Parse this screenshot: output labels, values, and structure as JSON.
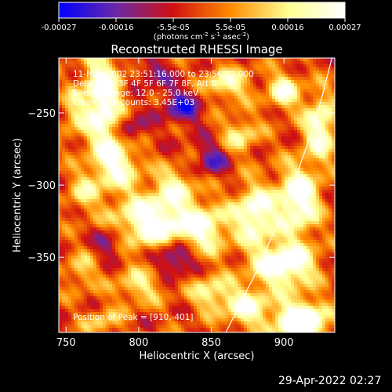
{
  "timestamp": "29-Apr-2022 02:27",
  "colorbar": {
    "colors": [
      "#0000ff",
      "#6a28a8",
      "#d01010",
      "#ff8c00",
      "#ffff90",
      "#ffffff"
    ],
    "ticks": [
      "-0.00027",
      "-0.00016",
      "-5.5e-05",
      "5.5e-05",
      "0.00016",
      "0.00027"
    ],
    "unit_parts": [
      {
        "t": "(photons cm",
        "sup": false
      },
      {
        "t": "-2",
        "sup": true
      },
      {
        "t": " s",
        "sup": false
      },
      {
        "t": "-1",
        "sup": true
      },
      {
        "t": " asec",
        "sup": false
      },
      {
        "t": "-2",
        "sup": true
      },
      {
        "t": ")",
        "sup": false
      }
    ]
  },
  "chart_data": {
    "type": "heatmap",
    "title": "Reconstructed RHESSI Image",
    "xlabel": "Heliocentric X (arcsec)",
    "ylabel": "Heliocentric Y (arcsec)",
    "xlim": [
      745,
      935
    ],
    "ylim": [
      -402,
      -212
    ],
    "x_ticks": [
      750,
      800,
      850,
      900
    ],
    "y_ticks": [
      -250,
      -300,
      -350
    ],
    "x_tick_labels": [
      "750",
      "800",
      "850",
      "900"
    ],
    "y_tick_labels": [
      "−250",
      "−300",
      "−350"
    ],
    "value_range": [
      -0.00027,
      0.00027
    ],
    "grid": false,
    "annotations": [
      "11-May-2002 23:51:16.000 to 23:56:12.000",
      "Detectors: 3F 4F 5F 6F 7F 8F, Att 0",
      "Energy Range: 12.0 - 25.0 keV",
      "Clean     Total counts: 3.45E+03"
    ],
    "peak_label": "Position of Peak = [910,-401]",
    "peak_position": [
      910,
      -401
    ],
    "limb_curve": [
      [
        860,
        -402
      ],
      [
        880,
        -362
      ],
      [
        900,
        -317
      ],
      [
        915,
        -275
      ],
      [
        926,
        -240
      ],
      [
        933,
        -212
      ]
    ],
    "features": [
      {
        "x": 775,
        "y": -240,
        "a": 2.2,
        "sx": 9,
        "sy": 24
      },
      {
        "x": 785,
        "y": -285,
        "a": 1.7,
        "sx": 11,
        "sy": 13
      },
      {
        "x": 762,
        "y": -305,
        "a": 1.0,
        "sx": 8,
        "sy": 10
      },
      {
        "x": 810,
        "y": -325,
        "a": 2.2,
        "sx": 18,
        "sy": 13
      },
      {
        "x": 825,
        "y": -300,
        "a": 1.2,
        "sx": 10,
        "sy": 9
      },
      {
        "x": 845,
        "y": -330,
        "a": 1.6,
        "sx": 12,
        "sy": 12
      },
      {
        "x": 800,
        "y": -370,
        "a": 1.1,
        "sx": 12,
        "sy": 9
      },
      {
        "x": 880,
        "y": -320,
        "a": 2.0,
        "sx": 10,
        "sy": 14
      },
      {
        "x": 910,
        "y": -310,
        "a": 2.2,
        "sx": 10,
        "sy": 16
      },
      {
        "x": 900,
        "y": -355,
        "a": 2.3,
        "sx": 15,
        "sy": 11
      },
      {
        "x": 912,
        "y": -395,
        "a": 3.0,
        "sx": 12,
        "sy": 10
      },
      {
        "x": 875,
        "y": -385,
        "a": 1.6,
        "sx": 11,
        "sy": 10
      },
      {
        "x": 925,
        "y": -260,
        "a": 1.8,
        "sx": 8,
        "sy": 16
      },
      {
        "x": 900,
        "y": -235,
        "a": 1.6,
        "sx": 8,
        "sy": 9
      },
      {
        "x": 860,
        "y": -230,
        "a": 1.4,
        "sx": 12,
        "sy": 8
      },
      {
        "x": 870,
        "y": -265,
        "a": 1.2,
        "sx": 9,
        "sy": 9
      },
      {
        "x": 850,
        "y": -375,
        "a": 1.3,
        "sx": 10,
        "sy": 9
      },
      {
        "x": 760,
        "y": -360,
        "a": 0.9,
        "sx": 8,
        "sy": 9
      },
      {
        "x": 755,
        "y": -250,
        "a": 0.9,
        "sx": 6,
        "sy": 12
      },
      {
        "x": 775,
        "y": -395,
        "a": 0.9,
        "sx": 9,
        "sy": 7
      },
      {
        "x": 830,
        "y": -245,
        "a": -1.3,
        "sx": 10,
        "sy": 9
      },
      {
        "x": 825,
        "y": -350,
        "a": -1.5,
        "sx": 9,
        "sy": 8
      },
      {
        "x": 850,
        "y": -282,
        "a": -1.1,
        "sx": 8,
        "sy": 8
      },
      {
        "x": 795,
        "y": -262,
        "a": -1.0,
        "sx": 7,
        "sy": 8
      },
      {
        "x": 810,
        "y": -222,
        "a": -0.9,
        "sx": 8,
        "sy": 6
      },
      {
        "x": 780,
        "y": -340,
        "a": -1.0,
        "sx": 7,
        "sy": 7
      }
    ]
  }
}
